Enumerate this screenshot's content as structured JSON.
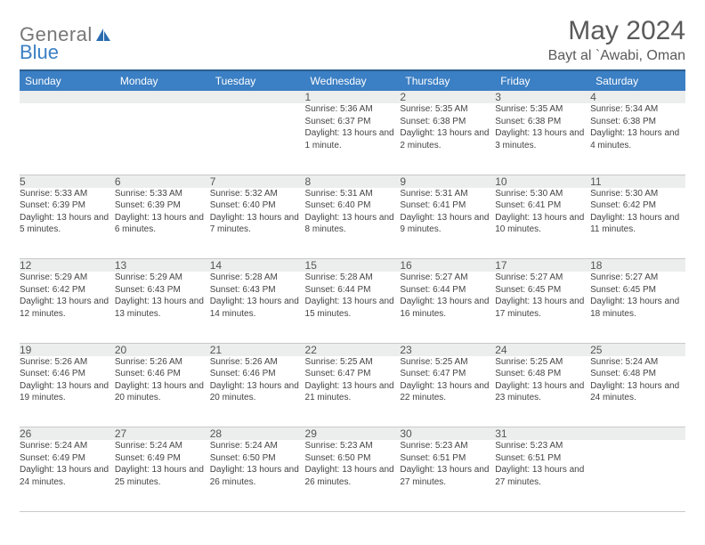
{
  "logo": {
    "text1": "General",
    "text2": "Blue",
    "sail_color": "#2b6cb0"
  },
  "header": {
    "month_title": "May 2024",
    "location": "Bayt al `Awabi, Oman"
  },
  "theme": {
    "header_bg": "#3b7fc4",
    "header_border_top": "#2e5f8f",
    "text_muted": "#5a5a5a",
    "daynum_bg": "#eceded",
    "row_border": "#c9c9c9"
  },
  "day_headers": [
    "Sunday",
    "Monday",
    "Tuesday",
    "Wednesday",
    "Thursday",
    "Friday",
    "Saturday"
  ],
  "weeks": [
    [
      {
        "n": "",
        "sr": "",
        "ss": "",
        "dl": ""
      },
      {
        "n": "",
        "sr": "",
        "ss": "",
        "dl": ""
      },
      {
        "n": "",
        "sr": "",
        "ss": "",
        "dl": ""
      },
      {
        "n": "1",
        "sr": "Sunrise: 5:36 AM",
        "ss": "Sunset: 6:37 PM",
        "dl": "Daylight: 13 hours and 1 minute."
      },
      {
        "n": "2",
        "sr": "Sunrise: 5:35 AM",
        "ss": "Sunset: 6:38 PM",
        "dl": "Daylight: 13 hours and 2 minutes."
      },
      {
        "n": "3",
        "sr": "Sunrise: 5:35 AM",
        "ss": "Sunset: 6:38 PM",
        "dl": "Daylight: 13 hours and 3 minutes."
      },
      {
        "n": "4",
        "sr": "Sunrise: 5:34 AM",
        "ss": "Sunset: 6:38 PM",
        "dl": "Daylight: 13 hours and 4 minutes."
      }
    ],
    [
      {
        "n": "5",
        "sr": "Sunrise: 5:33 AM",
        "ss": "Sunset: 6:39 PM",
        "dl": "Daylight: 13 hours and 5 minutes."
      },
      {
        "n": "6",
        "sr": "Sunrise: 5:33 AM",
        "ss": "Sunset: 6:39 PM",
        "dl": "Daylight: 13 hours and 6 minutes."
      },
      {
        "n": "7",
        "sr": "Sunrise: 5:32 AM",
        "ss": "Sunset: 6:40 PM",
        "dl": "Daylight: 13 hours and 7 minutes."
      },
      {
        "n": "8",
        "sr": "Sunrise: 5:31 AM",
        "ss": "Sunset: 6:40 PM",
        "dl": "Daylight: 13 hours and 8 minutes."
      },
      {
        "n": "9",
        "sr": "Sunrise: 5:31 AM",
        "ss": "Sunset: 6:41 PM",
        "dl": "Daylight: 13 hours and 9 minutes."
      },
      {
        "n": "10",
        "sr": "Sunrise: 5:30 AM",
        "ss": "Sunset: 6:41 PM",
        "dl": "Daylight: 13 hours and 10 minutes."
      },
      {
        "n": "11",
        "sr": "Sunrise: 5:30 AM",
        "ss": "Sunset: 6:42 PM",
        "dl": "Daylight: 13 hours and 11 minutes."
      }
    ],
    [
      {
        "n": "12",
        "sr": "Sunrise: 5:29 AM",
        "ss": "Sunset: 6:42 PM",
        "dl": "Daylight: 13 hours and 12 minutes."
      },
      {
        "n": "13",
        "sr": "Sunrise: 5:29 AM",
        "ss": "Sunset: 6:43 PM",
        "dl": "Daylight: 13 hours and 13 minutes."
      },
      {
        "n": "14",
        "sr": "Sunrise: 5:28 AM",
        "ss": "Sunset: 6:43 PM",
        "dl": "Daylight: 13 hours and 14 minutes."
      },
      {
        "n": "15",
        "sr": "Sunrise: 5:28 AM",
        "ss": "Sunset: 6:44 PM",
        "dl": "Daylight: 13 hours and 15 minutes."
      },
      {
        "n": "16",
        "sr": "Sunrise: 5:27 AM",
        "ss": "Sunset: 6:44 PM",
        "dl": "Daylight: 13 hours and 16 minutes."
      },
      {
        "n": "17",
        "sr": "Sunrise: 5:27 AM",
        "ss": "Sunset: 6:45 PM",
        "dl": "Daylight: 13 hours and 17 minutes."
      },
      {
        "n": "18",
        "sr": "Sunrise: 5:27 AM",
        "ss": "Sunset: 6:45 PM",
        "dl": "Daylight: 13 hours and 18 minutes."
      }
    ],
    [
      {
        "n": "19",
        "sr": "Sunrise: 5:26 AM",
        "ss": "Sunset: 6:46 PM",
        "dl": "Daylight: 13 hours and 19 minutes."
      },
      {
        "n": "20",
        "sr": "Sunrise: 5:26 AM",
        "ss": "Sunset: 6:46 PM",
        "dl": "Daylight: 13 hours and 20 minutes."
      },
      {
        "n": "21",
        "sr": "Sunrise: 5:26 AM",
        "ss": "Sunset: 6:46 PM",
        "dl": "Daylight: 13 hours and 20 minutes."
      },
      {
        "n": "22",
        "sr": "Sunrise: 5:25 AM",
        "ss": "Sunset: 6:47 PM",
        "dl": "Daylight: 13 hours and 21 minutes."
      },
      {
        "n": "23",
        "sr": "Sunrise: 5:25 AM",
        "ss": "Sunset: 6:47 PM",
        "dl": "Daylight: 13 hours and 22 minutes."
      },
      {
        "n": "24",
        "sr": "Sunrise: 5:25 AM",
        "ss": "Sunset: 6:48 PM",
        "dl": "Daylight: 13 hours and 23 minutes."
      },
      {
        "n": "25",
        "sr": "Sunrise: 5:24 AM",
        "ss": "Sunset: 6:48 PM",
        "dl": "Daylight: 13 hours and 24 minutes."
      }
    ],
    [
      {
        "n": "26",
        "sr": "Sunrise: 5:24 AM",
        "ss": "Sunset: 6:49 PM",
        "dl": "Daylight: 13 hours and 24 minutes."
      },
      {
        "n": "27",
        "sr": "Sunrise: 5:24 AM",
        "ss": "Sunset: 6:49 PM",
        "dl": "Daylight: 13 hours and 25 minutes."
      },
      {
        "n": "28",
        "sr": "Sunrise: 5:24 AM",
        "ss": "Sunset: 6:50 PM",
        "dl": "Daylight: 13 hours and 26 minutes."
      },
      {
        "n": "29",
        "sr": "Sunrise: 5:23 AM",
        "ss": "Sunset: 6:50 PM",
        "dl": "Daylight: 13 hours and 26 minutes."
      },
      {
        "n": "30",
        "sr": "Sunrise: 5:23 AM",
        "ss": "Sunset: 6:51 PM",
        "dl": "Daylight: 13 hours and 27 minutes."
      },
      {
        "n": "31",
        "sr": "Sunrise: 5:23 AM",
        "ss": "Sunset: 6:51 PM",
        "dl": "Daylight: 13 hours and 27 minutes."
      },
      {
        "n": "",
        "sr": "",
        "ss": "",
        "dl": ""
      }
    ]
  ]
}
